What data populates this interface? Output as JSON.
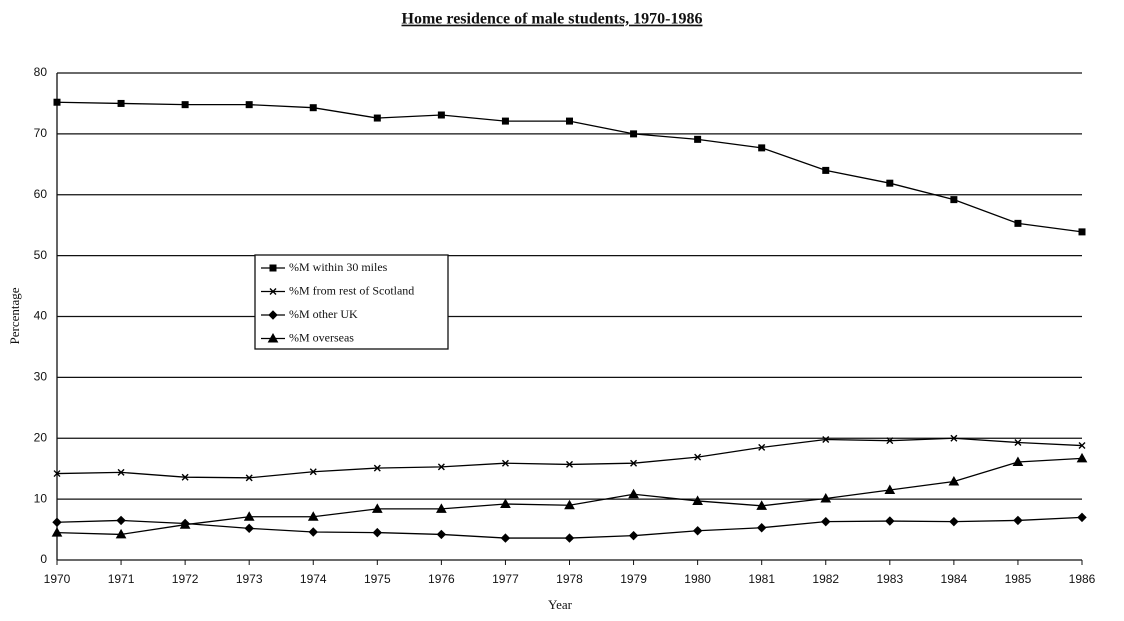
{
  "chart_data": {
    "type": "line",
    "title": "Home residence of male students, 1970-1986",
    "x_label": "Year",
    "y_label": "Percentage",
    "categories": [
      "1970",
      "1971",
      "1972",
      "1973",
      "1974",
      "1975",
      "1976",
      "1977",
      "1978",
      "1979",
      "1980",
      "1981",
      "1982",
      "1983",
      "1984",
      "1985",
      "1986"
    ],
    "ylim": [
      0,
      80
    ],
    "yticks": [
      0,
      10,
      20,
      30,
      40,
      50,
      60,
      70,
      80
    ],
    "grid": true,
    "series": [
      {
        "name": "%M within 30 miles",
        "color": "#000000",
        "marker": "square",
        "values": [
          75.2,
          75,
          74.8,
          74.8,
          74.3,
          72.6,
          73.1,
          72.1,
          72.1,
          70,
          69.1,
          67.7,
          64,
          61.9,
          59.2,
          55.3,
          53.9
        ]
      },
      {
        "name": "%M from rest of Scotland",
        "color": "#000000",
        "marker": "x",
        "values": [
          14.2,
          14.4,
          13.6,
          13.5,
          14.5,
          15.1,
          15.3,
          15.9,
          15.7,
          15.9,
          16.9,
          18.5,
          19.8,
          19.6,
          20.0,
          19.3,
          18.8
        ]
      },
      {
        "name": "%M other UK",
        "color": "#000000",
        "marker": "diamond",
        "values": [
          6.2,
          6.5,
          6.0,
          5.2,
          4.6,
          4.5,
          4.2,
          3.6,
          3.6,
          4.0,
          4.8,
          5.3,
          6.3,
          6.4,
          6.3,
          6.5,
          7.0
        ]
      },
      {
        "name": "%M overseas",
        "color": "#000000",
        "marker": "triangle",
        "values": [
          4.5,
          4.2,
          5.8,
          7.1,
          7.1,
          8.4,
          8.4,
          9.2,
          9.0,
          10.8,
          9.7,
          8.9,
          10.1,
          11.5,
          12.9,
          16.1,
          16.7
        ]
      }
    ]
  }
}
